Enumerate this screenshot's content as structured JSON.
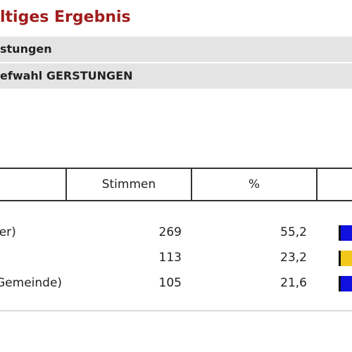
{
  "header": {
    "title": "ltiges Ergebnis",
    "district": "stungen",
    "election": "efwahl GERSTUNGEN"
  },
  "table": {
    "columns": {
      "party": "",
      "votes": "Stimmen",
      "percent": "%",
      "chart": ""
    },
    "rows": [
      {
        "name": "ler)",
        "votes": "269",
        "percent": "55,2",
        "bar_color": "#1010e0"
      },
      {
        "name": "",
        "votes": "113",
        "percent": "23,2",
        "bar_color": "#f2c81a"
      },
      {
        "name": "Gemeinde)",
        "votes": "105",
        "percent": "21,6",
        "bar_color": "#1010e0"
      }
    ]
  },
  "colors": {
    "title": "#a01c1c",
    "header_bar_background": "#e4e4e4"
  }
}
